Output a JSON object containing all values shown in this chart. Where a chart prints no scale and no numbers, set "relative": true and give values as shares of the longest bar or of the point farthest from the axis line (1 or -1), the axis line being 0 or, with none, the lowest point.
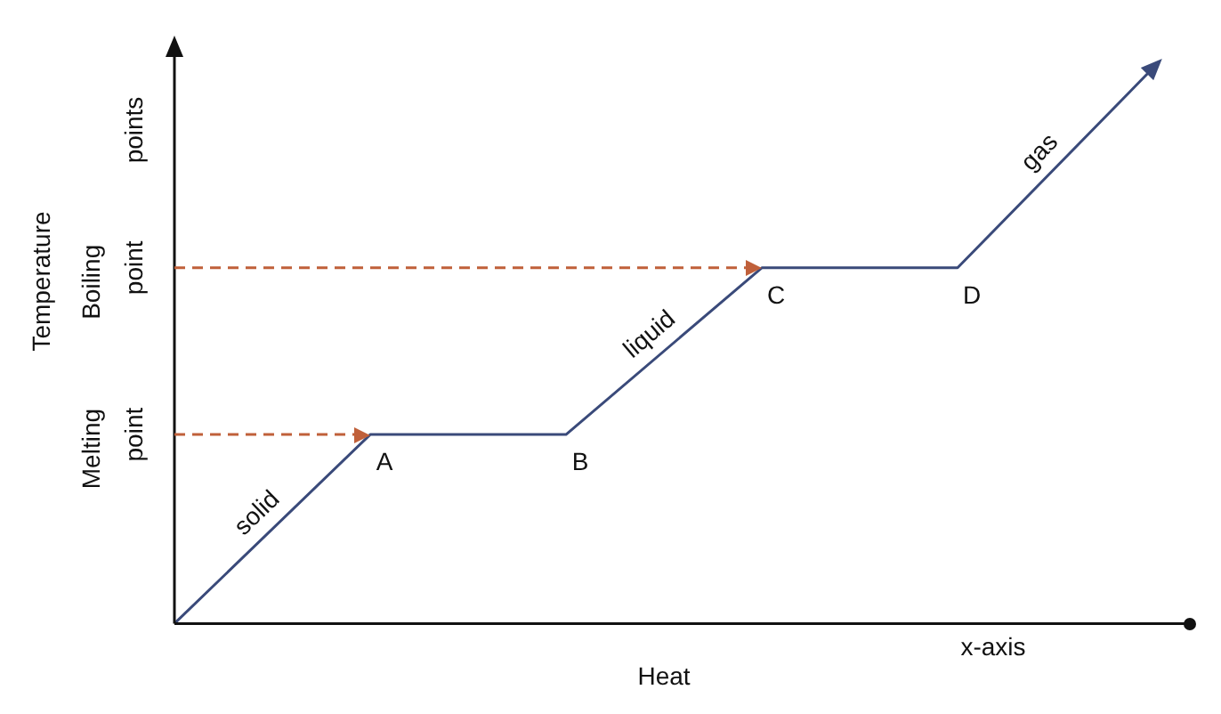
{
  "chart_data": {
    "type": "line",
    "relative": true,
    "xlabel": "Heat",
    "ylabel": "Temperature",
    "categories": [
      null,
      null,
      null,
      null,
      null,
      null
    ],
    "series": [
      {
        "color": "#3a4a7a",
        "values": [
          0,
          0.34,
          0.34,
          0.64,
          0.64,
          1
        ]
      }
    ],
    "ref_lines": [
      {
        "axis": "y",
        "value": 0.34,
        "label": "Melting point",
        "color": "#c0603a",
        "line_style": "dashed"
      },
      {
        "axis": "y",
        "value": 0.64,
        "label": "Boiling point",
        "color": "#c0603a",
        "line_style": "dashed"
      }
    ],
    "annotations": [
      "A",
      "B",
      "C",
      "D",
      "solid",
      "liquid",
      "gas",
      "x-axis",
      "points"
    ],
    "grid": false,
    "legend": false
  }
}
